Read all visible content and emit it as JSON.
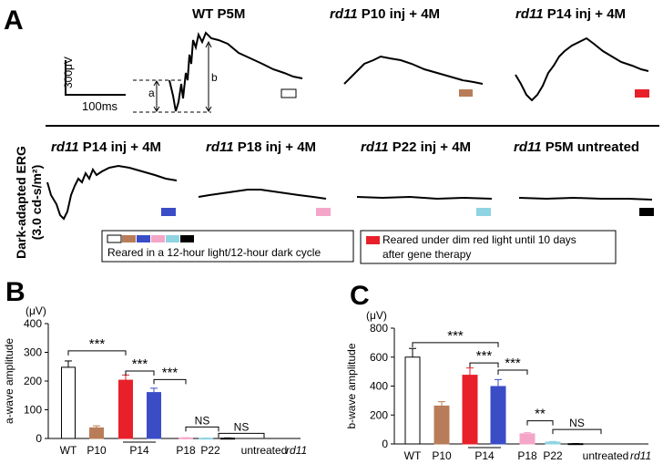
{
  "panel_a": {
    "label": "A",
    "side_label_line1": "Dark-adapted ERG",
    "side_label_line2": "(3.0 cd-s/m²)",
    "scale": {
      "y": "300μV",
      "x": "100ms"
    },
    "marker_a": "a",
    "marker_b": "b",
    "top_traces": [
      {
        "title_strain": "",
        "title_rest": "WT P5M",
        "swatch_color": "#ffffff"
      },
      {
        "title_strain": "rd11",
        "title_rest": " P10 inj + 4M",
        "swatch_color": "#b87d58"
      },
      {
        "title_strain": "rd11",
        "title_rest": " P14 inj + 4M",
        "swatch_color": "#e8202a"
      }
    ],
    "bottom_traces": [
      {
        "title_strain": "rd11",
        "title_rest": " P14 inj + 4M",
        "swatch_color": "#3a4dc7"
      },
      {
        "title_strain": "rd11",
        "title_rest": " P18 inj + 4M",
        "swatch_color": "#f4a6c9"
      },
      {
        "title_strain": "rd11",
        "title_rest": " P22 inj + 4M",
        "swatch_color": "#8fd4e2"
      },
      {
        "title_strain": "rd11",
        "title_rest": " P5M untreated",
        "swatch_color": "#000000"
      }
    ],
    "legend_left": "Reared in a 12-hour light/12-hour dark cycle",
    "legend_right_line1": "Reared under dim red light until 10 days",
    "legend_right_line2": "after gene therapy",
    "legend_right_color": "#e8202a"
  },
  "colors": {
    "WT": "#ffffff",
    "P10": "#b87d58",
    "P14_red": "#e8202a",
    "P14_blue": "#3a4dc7",
    "P18": "#f4a6c9",
    "P22": "#8fd4e2",
    "untreated": "#000000"
  },
  "chart_data": [
    {
      "type": "bar",
      "panel_label": "B",
      "title": "",
      "unit_label": "(μV)",
      "ylabel": "a-wave amplitude",
      "ylim": [
        0,
        400
      ],
      "yticks": [
        0,
        100,
        200,
        300,
        400
      ],
      "group_labels": [
        "WT",
        "P10",
        "P14",
        "P18",
        "P22",
        "untreated"
      ],
      "strain_label": "rd11",
      "bars": [
        {
          "group": "WT",
          "value": 248,
          "err": 22,
          "color": "#ffffff"
        },
        {
          "group": "P10",
          "value": 37,
          "err": 7,
          "color": "#b87d58"
        },
        {
          "group": "P14",
          "value": 203,
          "err": 18,
          "color": "#e8202a"
        },
        {
          "group": "P14",
          "value": 160,
          "err": 15,
          "color": "#3a4dc7"
        },
        {
          "group": "P18",
          "value": 2,
          "err": 1,
          "color": "#f4a6c9"
        },
        {
          "group": "P22",
          "value": 1,
          "err": 1,
          "color": "#8fd4e2"
        },
        {
          "group": "untreated",
          "value": 1,
          "err": 1,
          "color": "#000000"
        }
      ],
      "significance": [
        {
          "label": "***"
        },
        {
          "label": "***"
        },
        {
          "label": "***"
        },
        {
          "label": "NS"
        },
        {
          "label": "NS"
        }
      ]
    },
    {
      "type": "bar",
      "panel_label": "C",
      "title": "",
      "unit_label": "(μV)",
      "ylabel": "b-wave amplitude",
      "ylim": [
        0,
        800
      ],
      "yticks": [
        0,
        200,
        400,
        600,
        800
      ],
      "group_labels": [
        "WT",
        "P10",
        "P14",
        "P18",
        "P22",
        "untreated"
      ],
      "strain_label": "rd11",
      "bars": [
        {
          "group": "WT",
          "value": 600,
          "err": 60,
          "color": "#ffffff"
        },
        {
          "group": "P10",
          "value": 262,
          "err": 30,
          "color": "#b87d58"
        },
        {
          "group": "P14",
          "value": 475,
          "err": 50,
          "color": "#e8202a"
        },
        {
          "group": "P14",
          "value": 397,
          "err": 48,
          "color": "#3a4dc7"
        },
        {
          "group": "P18",
          "value": 70,
          "err": 8,
          "color": "#f4a6c9"
        },
        {
          "group": "P22",
          "value": 13,
          "err": 4,
          "color": "#8fd4e2"
        },
        {
          "group": "untreated",
          "value": 2,
          "err": 1,
          "color": "#000000"
        }
      ],
      "significance": [
        {
          "label": "***"
        },
        {
          "label": "***"
        },
        {
          "label": "***"
        },
        {
          "label": "**"
        },
        {
          "label": "NS"
        }
      ]
    }
  ]
}
